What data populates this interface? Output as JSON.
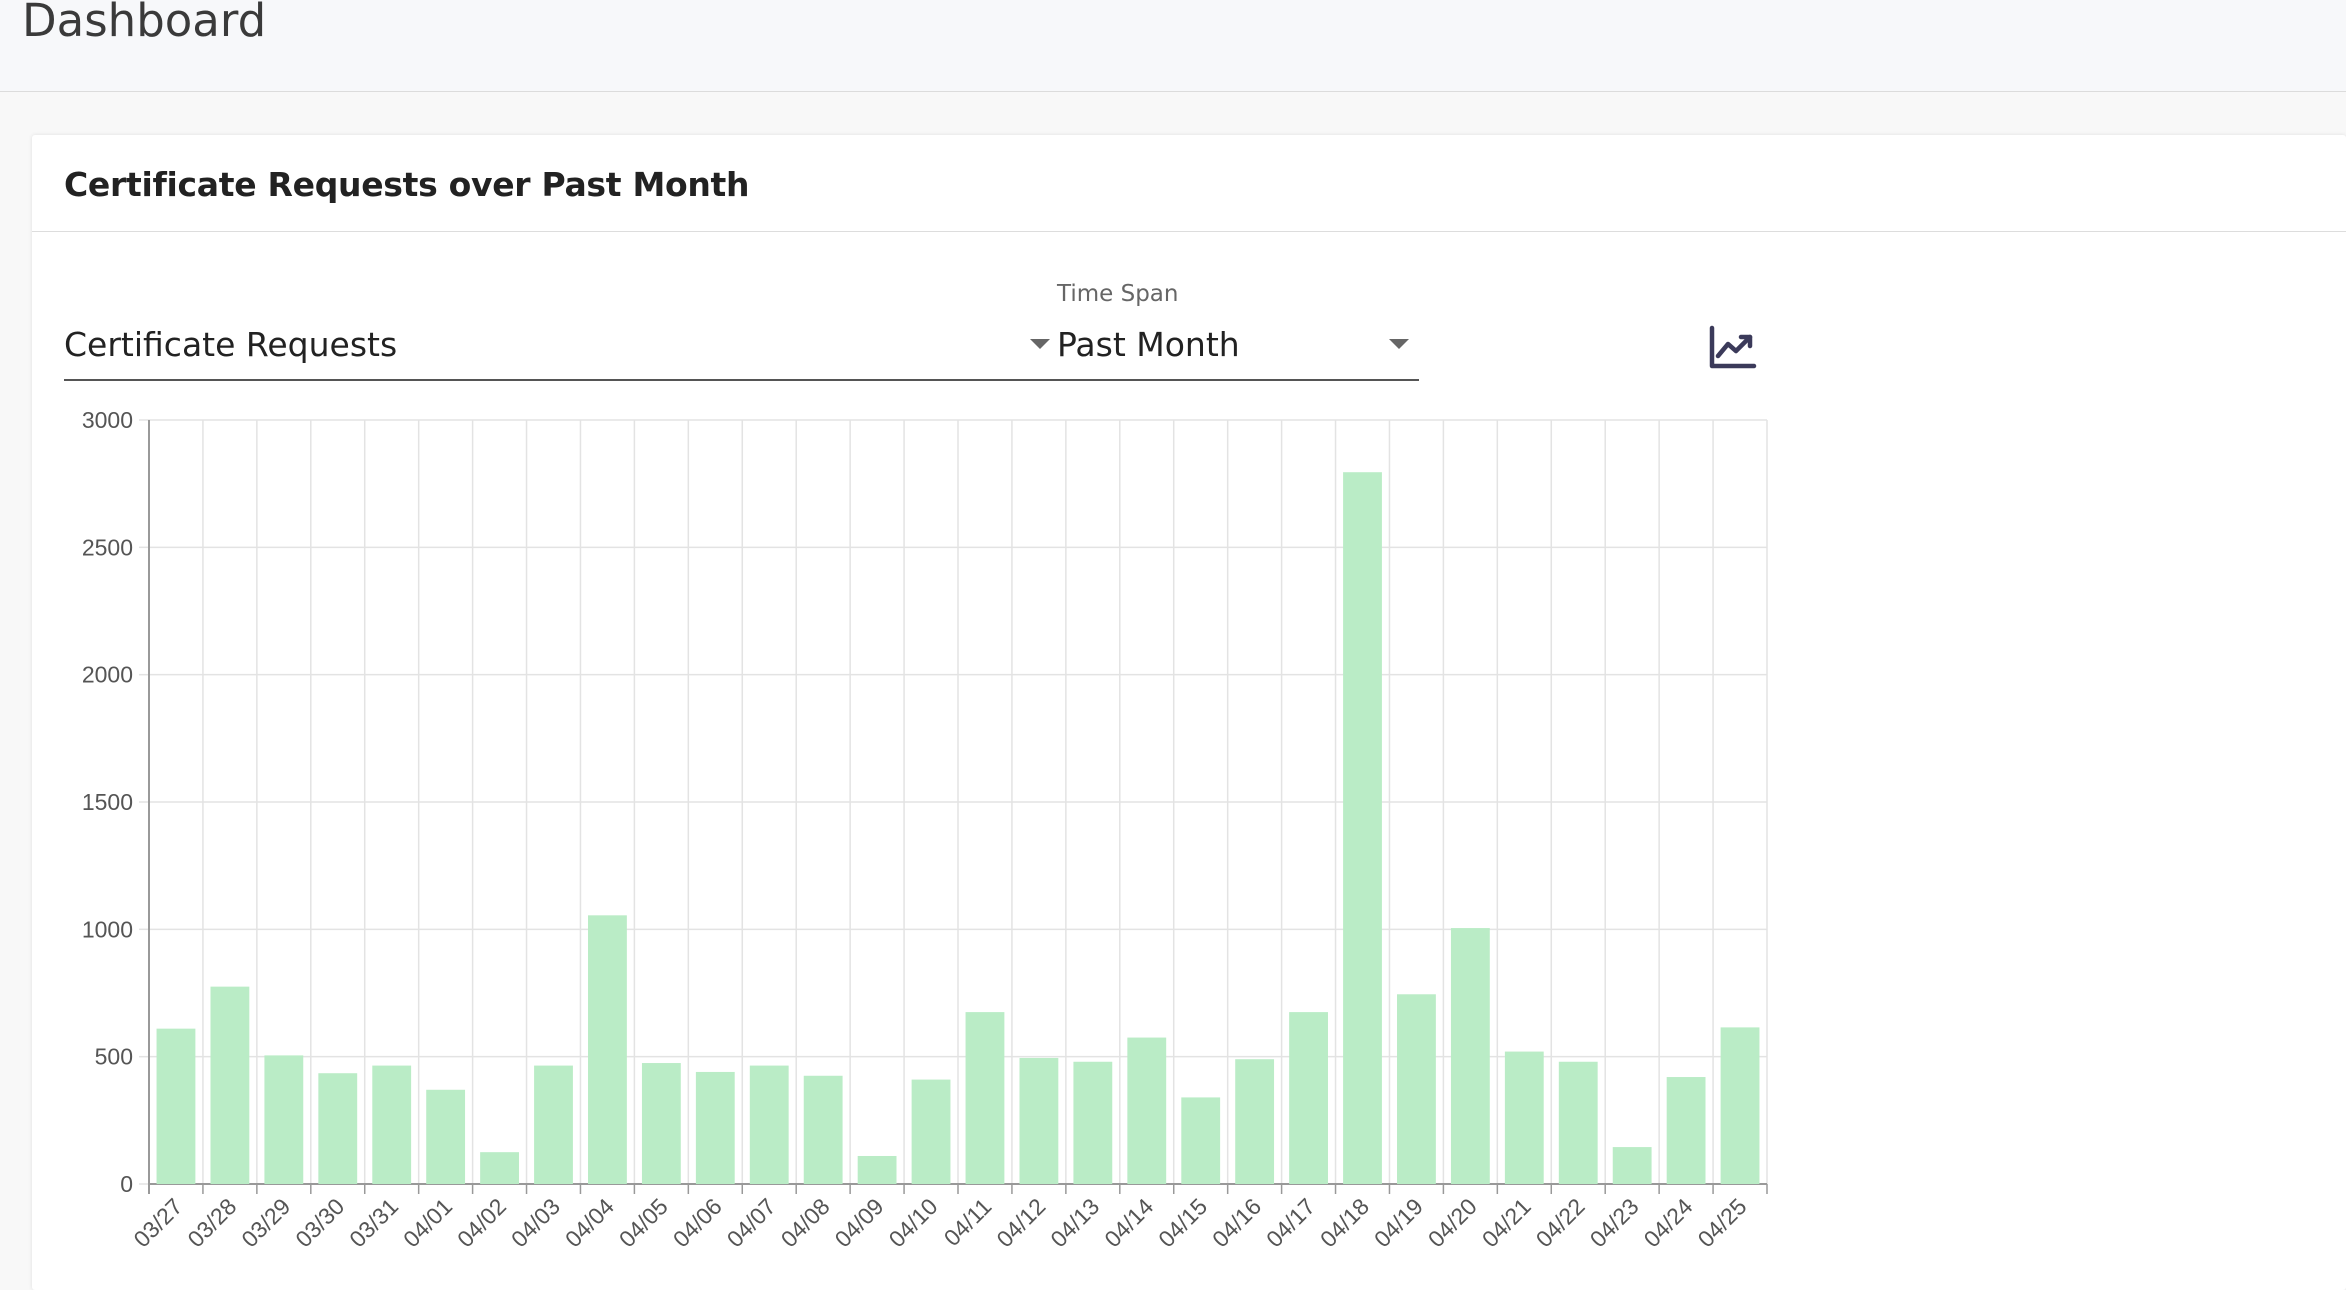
{
  "page": {
    "title": "Dashboard"
  },
  "card": {
    "title": "Certificate Requests over Past Month"
  },
  "controls": {
    "metric": {
      "value": "Certificate Requests"
    },
    "timespan": {
      "label": "Time Span",
      "value": "Past Month"
    },
    "chart_type_icon": "line-chart-icon"
  },
  "colors": {
    "bar": "#baecc6",
    "grid": "#e3e3e3",
    "axis": "#999999",
    "icon": "#3b3a5a"
  },
  "chart_data": {
    "type": "bar",
    "categories": [
      "03/27",
      "03/28",
      "03/29",
      "03/30",
      "03/31",
      "04/01",
      "04/02",
      "04/03",
      "04/04",
      "04/05",
      "04/06",
      "04/07",
      "04/08",
      "04/09",
      "04/10",
      "04/11",
      "04/12",
      "04/13",
      "04/14",
      "04/15",
      "04/16",
      "04/17",
      "04/18",
      "04/19",
      "04/20",
      "04/21",
      "04/22",
      "04/23",
      "04/24",
      "04/25"
    ],
    "values": [
      610,
      775,
      505,
      435,
      465,
      370,
      125,
      465,
      1055,
      475,
      440,
      465,
      425,
      110,
      410,
      675,
      495,
      480,
      575,
      340,
      490,
      675,
      2795,
      745,
      1005,
      520,
      480,
      145,
      420,
      615
    ],
    "ylim": [
      0,
      3000
    ],
    "yticks": [
      0,
      500,
      1000,
      1500,
      2000,
      2500,
      3000
    ],
    "grid": true,
    "legend": "none",
    "title": "",
    "xlabel": "",
    "ylabel": ""
  }
}
